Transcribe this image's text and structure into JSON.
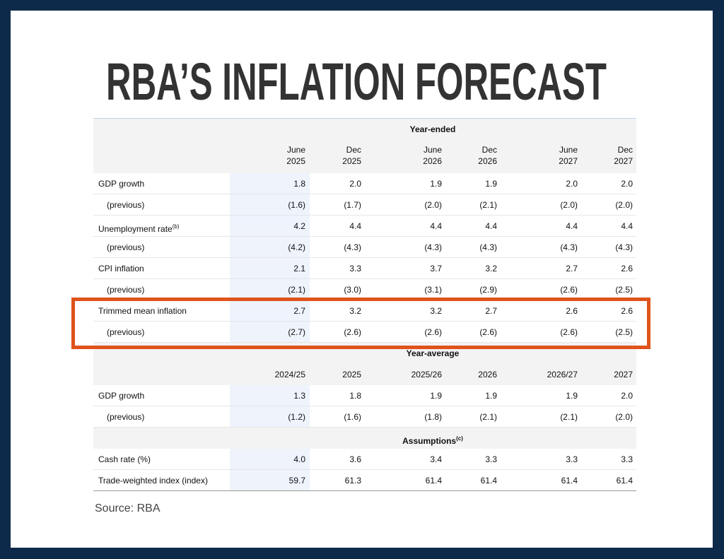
{
  "title": "RBA’S INFLATION FORECAST",
  "table": {
    "sections": [
      {
        "heading": "Year-ended",
        "columns": [
          [
            "June",
            "2025"
          ],
          [
            "Dec",
            "2025"
          ],
          [
            "June",
            "2026"
          ],
          [
            "Dec",
            "2026"
          ],
          [
            "June",
            "2027"
          ],
          [
            "Dec",
            "2027"
          ]
        ],
        "rows": [
          {
            "label": "GDP growth",
            "values": [
              "1.8",
              "2.0",
              "1.9",
              "1.9",
              "2.0",
              "2.0"
            ]
          },
          {
            "label": "(previous)",
            "values": [
              "(1.6)",
              "(1.7)",
              "(2.0)",
              "(2.1)",
              "(2.0)",
              "(2.0)"
            ]
          },
          {
            "label": "Unemployment rate",
            "note": "(b)",
            "values": [
              "4.2",
              "4.4",
              "4.4",
              "4.4",
              "4.4",
              "4.4"
            ]
          },
          {
            "label": "(previous)",
            "values": [
              "(4.2)",
              "(4.3)",
              "(4.3)",
              "(4.3)",
              "(4.3)",
              "(4.3)"
            ]
          },
          {
            "label": "CPI inflation",
            "values": [
              "2.1",
              "3.3",
              "3.7",
              "3.2",
              "2.7",
              "2.6"
            ]
          },
          {
            "label": "(previous)",
            "values": [
              "(2.1)",
              "(3.0)",
              "(3.1)",
              "(2.9)",
              "(2.6)",
              "(2.5)"
            ]
          },
          {
            "label": "Trimmed mean inflation",
            "values": [
              "2.7",
              "3.2",
              "3.2",
              "2.7",
              "2.6",
              "2.6"
            ]
          },
          {
            "label": "(previous)",
            "values": [
              "(2.7)",
              "(2.6)",
              "(2.6)",
              "(2.6)",
              "(2.6)",
              "(2.5)"
            ]
          }
        ]
      },
      {
        "heading": "Year-average",
        "columns": [
          [
            "2024/25"
          ],
          [
            "2025"
          ],
          [
            "2025/26"
          ],
          [
            "2026"
          ],
          [
            "2026/27"
          ],
          [
            "2027"
          ]
        ],
        "rows": [
          {
            "label": "GDP growth",
            "values": [
              "1.3",
              "1.8",
              "1.9",
              "1.9",
              "1.9",
              "2.0"
            ]
          },
          {
            "label": "(previous)",
            "values": [
              "(1.2)",
              "(1.6)",
              "(1.8)",
              "(2.1)",
              "(2.1)",
              "(2.0)"
            ]
          }
        ]
      },
      {
        "heading": "Assumptions",
        "note": "(c)",
        "rows": [
          {
            "label": "Cash rate (%)",
            "values": [
              "4.0",
              "3.6",
              "3.4",
              "3.3",
              "3.3",
              "3.3"
            ]
          },
          {
            "label": "Trade-weighted index (index)",
            "values": [
              "59.7",
              "61.3",
              "61.4",
              "61.4",
              "61.4",
              "61.4"
            ]
          }
        ]
      }
    ]
  },
  "source": "Source: RBA"
}
